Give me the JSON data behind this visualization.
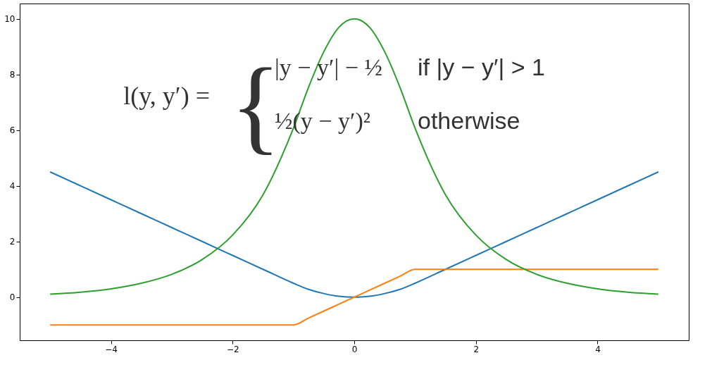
{
  "chart_data": {
    "type": "line",
    "x": [
      -5,
      -4.5,
      -4,
      -3.5,
      -3,
      -2.5,
      -2,
      -1.5,
      -1,
      -0.75,
      -0.5,
      -0.25,
      0,
      0.25,
      0.5,
      0.75,
      1,
      1.5,
      2,
      2.5,
      3,
      3.5,
      4,
      4.5,
      5
    ],
    "series": [
      {
        "color": "#1f77b4",
        "values": [
          4.5,
          4,
          3.5,
          3,
          2.5,
          2,
          1.5,
          1,
          0.5,
          0.28,
          0.13,
          0.03,
          0,
          0.03,
          0.13,
          0.28,
          0.5,
          1,
          1.5,
          2,
          2.5,
          3,
          3.5,
          4,
          4.5
        ]
      },
      {
        "color": "#ff7f0e",
        "values": [
          -1,
          -1,
          -1,
          -1,
          -1,
          -1,
          -1,
          -1,
          -1,
          -0.75,
          -0.5,
          -0.25,
          0,
          0.25,
          0.5,
          0.75,
          1,
          1,
          1,
          1,
          1,
          1,
          1,
          1,
          1
        ]
      },
      {
        "color": "#2ca02c",
        "values": [
          0.11,
          0.18,
          0.3,
          0.5,
          0.82,
          1.35,
          2.23,
          3.68,
          6.07,
          7.55,
          8.82,
          9.7,
          10,
          9.7,
          8.82,
          7.55,
          6.07,
          3.68,
          2.23,
          1.35,
          0.82,
          0.5,
          0.3,
          0.18,
          0.11
        ]
      }
    ],
    "xlim": [
      -5.5,
      5.5
    ],
    "ylim": [
      -1.55,
      10.55
    ],
    "xticks": [
      -4,
      -2,
      0,
      2,
      4
    ],
    "yticks": [
      0,
      2,
      4,
      6,
      8,
      10
    ],
    "grid": false,
    "marker": "none",
    "line_style": "solid",
    "annotations": [
      "l(y, y′) =",
      "{",
      "|y − y′| − ½",
      "if |y − y′| > 1",
      "½(y − y′)²",
      "otherwise"
    ]
  }
}
